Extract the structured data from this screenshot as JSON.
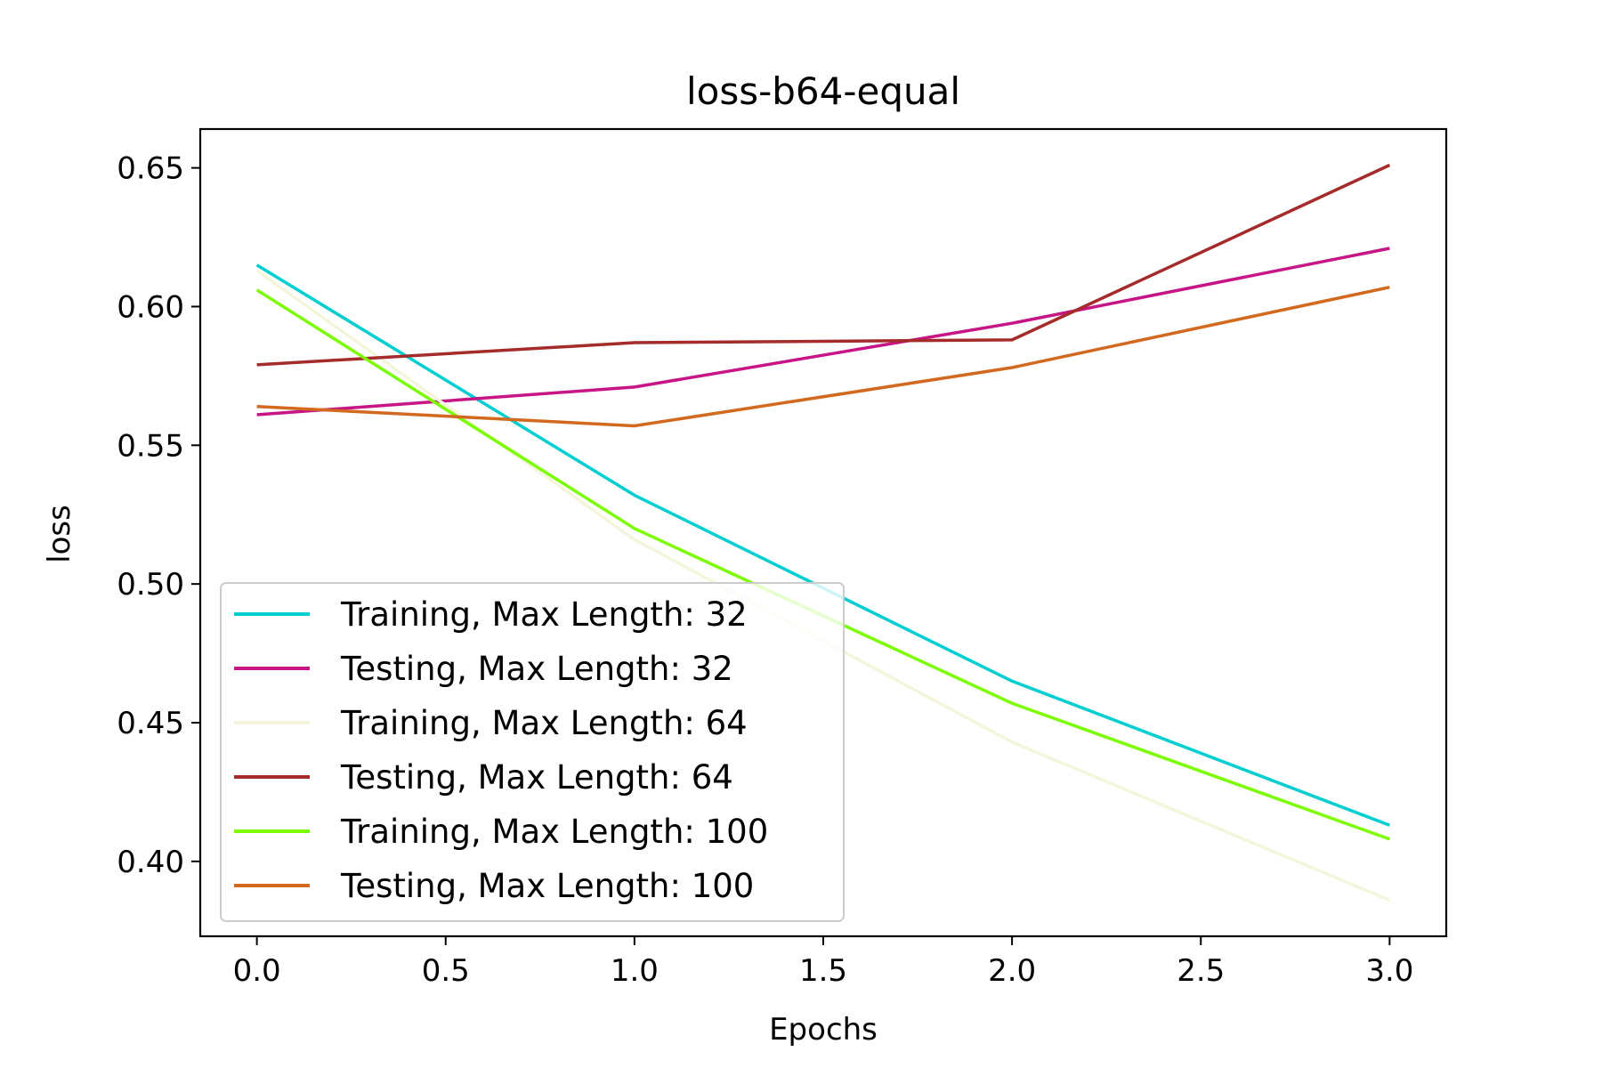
{
  "chart_data": {
    "type": "line",
    "title": "loss-b64-equal",
    "xlabel": "Epochs",
    "ylabel": "loss",
    "xlim": [
      -0.15,
      3.15
    ],
    "ylim": [
      0.373,
      0.664
    ],
    "x_ticks": [
      0.0,
      0.5,
      1.0,
      1.5,
      2.0,
      2.5,
      3.0
    ],
    "x_tick_labels": [
      "0.0",
      "0.5",
      "1.0",
      "1.5",
      "2.0",
      "2.5",
      "3.0"
    ],
    "y_ticks": [
      0.4,
      0.45,
      0.5,
      0.55,
      0.6,
      0.65
    ],
    "y_tick_labels": [
      "0.40",
      "0.45",
      "0.50",
      "0.55",
      "0.60",
      "0.65"
    ],
    "grid": false,
    "legend_position": "lower-left",
    "x": [
      0,
      1,
      2,
      3
    ],
    "series": [
      {
        "name": "Training, Max Length: 32",
        "color": "#00ced1",
        "values": [
          0.615,
          0.532,
          0.465,
          0.413
        ]
      },
      {
        "name": "Testing, Max Length: 32",
        "color": "#c71585",
        "values": [
          0.561,
          0.571,
          0.594,
          0.621
        ]
      },
      {
        "name": "Training, Max Length: 64",
        "color": "#f5f5dc",
        "values": [
          0.613,
          0.516,
          0.443,
          0.386
        ]
      },
      {
        "name": "Testing, Max Length: 64",
        "color": "#a52a2a",
        "values": [
          0.579,
          0.587,
          0.588,
          0.651
        ]
      },
      {
        "name": "Training, Max Length: 100",
        "color": "#7cfc00",
        "values": [
          0.606,
          0.52,
          0.457,
          0.408
        ]
      },
      {
        "name": "Testing, Max Length: 100",
        "color": "#d2691e",
        "values": [
          0.564,
          0.557,
          0.578,
          0.607
        ]
      }
    ]
  }
}
